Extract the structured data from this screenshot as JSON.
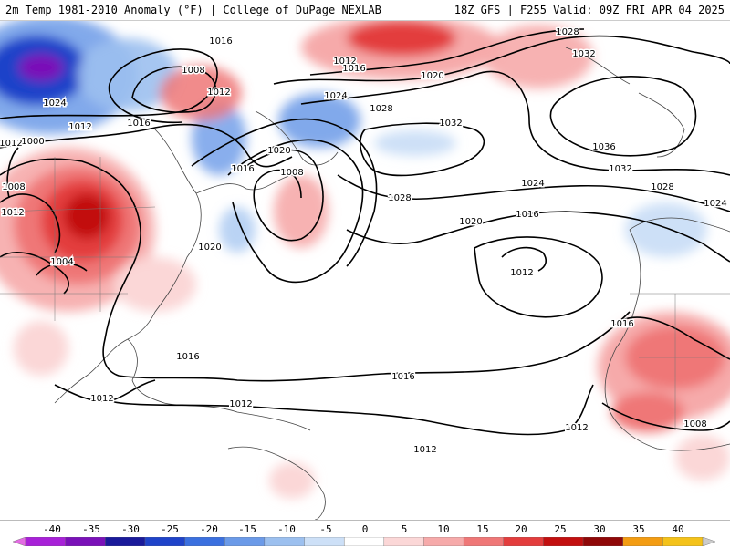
{
  "header": {
    "title_left": "2m Temp 1981-2010 Anomaly (°F) | College of DuPage NEXLAB",
    "title_right": "18Z GFS | F255 Valid: 09Z FRI APR 04 2025"
  },
  "isobar_labels": [
    "1016",
    "1012",
    "1008",
    "1024",
    "1012",
    "1000",
    "1008",
    "1004",
    "1016",
    "1012",
    "1016",
    "1028",
    "1012",
    "1016",
    "1020",
    "1024",
    "1028",
    "1032",
    "1020",
    "1020",
    "1008",
    "1016",
    "1028",
    "1032",
    "1036",
    "1032",
    "1028",
    "1024",
    "1024",
    "1016",
    "1012",
    "1020",
    "1016",
    "1016",
    "1012",
    "1012",
    "1012",
    "1012",
    "1012",
    "1008"
  ],
  "legend": {
    "ticks": [
      "-40",
      "-35",
      "-30",
      "-25",
      "-20",
      "-15",
      "-10",
      "-5",
      "0",
      "5",
      "10",
      "15",
      "20",
      "25",
      "30",
      "35",
      "40"
    ],
    "colors": [
      "#e36be3",
      "#a821d8",
      "#7a11b8",
      "#1a1a9a",
      "#1f43c9",
      "#3b70df",
      "#6b9ae8",
      "#9cc0ef",
      "#cde0f7",
      "#ffffff",
      "#fbd7d7",
      "#f6aaaa",
      "#ef7777",
      "#e33d3d",
      "#c20f0f",
      "#8f0808",
      "#f39c12",
      "#f4c21a",
      "#cccccc"
    ]
  }
}
